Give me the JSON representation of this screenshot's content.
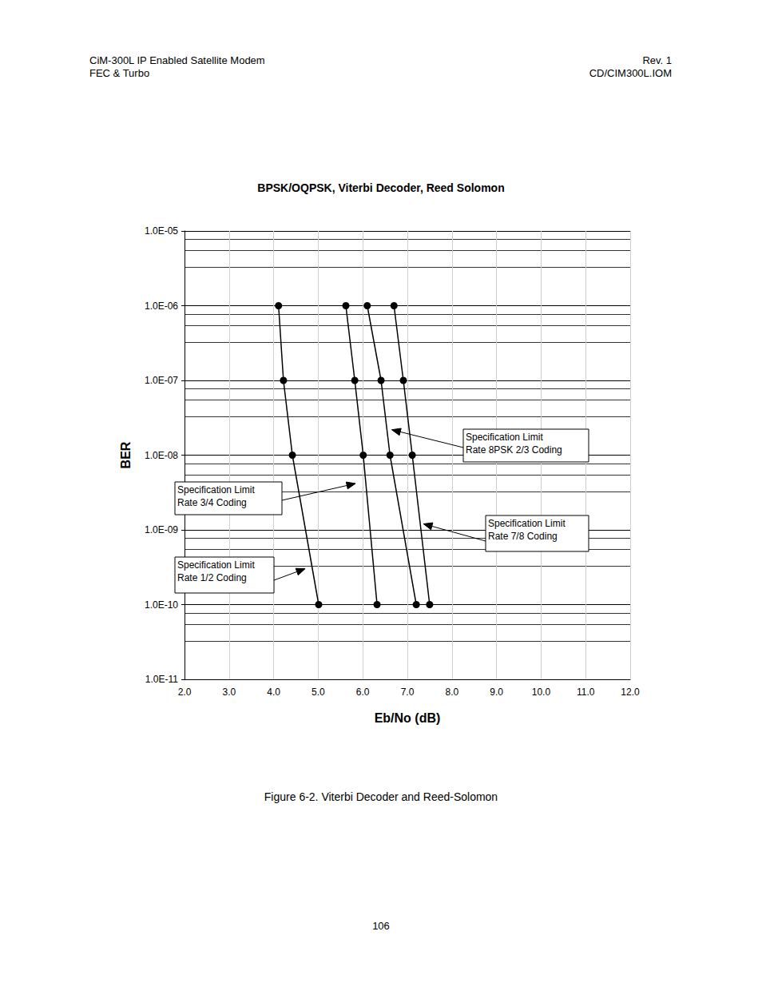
{
  "header": {
    "left": [
      "CiM-300L IP Enabled Satellite Modem",
      "FEC & Turbo"
    ],
    "right": [
      "Rev. 1",
      "CD/CIM300L.IOM"
    ]
  },
  "caption": "Figure 6-2.  Viterbi Decoder and Reed-Solomon",
  "page_number": "106",
  "chart_data": {
    "type": "line",
    "title": "BPSK/OQPSK, Viterbi Decoder, Reed Solomon",
    "x_label": "Eb/No (dB)",
    "y_label": "BER",
    "log": "y",
    "grid": true,
    "xlim": [
      2,
      12
    ],
    "ylim": [
      1e-11,
      1e-05
    ],
    "xticks": [
      {
        "value": 2,
        "label": "2.0"
      },
      {
        "value": 3,
        "label": "3.0"
      },
      {
        "value": 4,
        "label": "4.0"
      },
      {
        "value": 5,
        "label": "5.0"
      },
      {
        "value": 6,
        "label": "6.0"
      },
      {
        "value": 7,
        "label": "7.0"
      },
      {
        "value": 8,
        "label": "8.0"
      },
      {
        "value": 9,
        "label": "9.0"
      },
      {
        "value": 10,
        "label": "10.0"
      },
      {
        "value": 11,
        "label": "11.0"
      },
      {
        "value": 12,
        "label": "12.0"
      }
    ],
    "yticks": [
      {
        "value": 1e-11,
        "label": "1.0E-11"
      },
      {
        "value": 1e-10,
        "label": "1.0E-10"
      },
      {
        "value": 1e-09,
        "label": "1.0E-09"
      },
      {
        "value": 1e-08,
        "label": "1.0E-08"
      },
      {
        "value": 1e-07,
        "label": "1.0E-07"
      },
      {
        "value": 1e-06,
        "label": "1.0E-06"
      },
      {
        "value": 1e-05,
        "label": "1.0E-05"
      }
    ],
    "series": [
      {
        "annotation": [
          "Specification Limit",
          "Rate 1/2 Coding"
        ],
        "color": "#000000",
        "marker": "circle",
        "line_style": "solid",
        "x": [
          4.11,
          4.22,
          4.42,
          5.01
        ],
        "values": [
          1e-06,
          1e-07,
          1e-08,
          1e-10
        ]
      },
      {
        "annotation": [
          "Specification Limit",
          "Rate 3/4 Coding"
        ],
        "color": "#000000",
        "marker": "circle",
        "line_style": "solid",
        "x": [
          5.62,
          5.82,
          6.01,
          6.32
        ],
        "values": [
          1e-06,
          1e-07,
          1e-08,
          1e-10
        ]
      },
      {
        "annotation": [
          "Specification Limit",
          "Rate 8PSK 2/3 Coding"
        ],
        "color": "#000000",
        "marker": "circle",
        "line_style": "solid",
        "x": [
          6.1,
          6.41,
          6.61,
          7.2
        ],
        "values": [
          1e-06,
          1e-07,
          1e-08,
          1e-10
        ]
      },
      {
        "annotation": [
          "Specification Limit",
          "Rate 7/8 Coding"
        ],
        "color": "#000000",
        "marker": "circle",
        "line_style": "solid",
        "x": [
          6.7,
          6.91,
          7.11,
          7.5
        ],
        "values": [
          1e-06,
          1e-07,
          1e-08,
          1e-10
        ]
      }
    ]
  }
}
